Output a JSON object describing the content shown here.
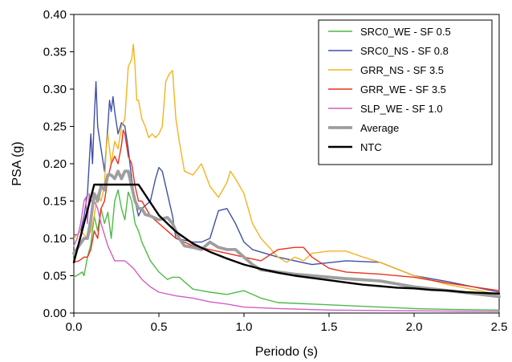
{
  "chart_data": {
    "type": "line",
    "xlabel": "Periodo (s)",
    "ylabel": "PSA (g)",
    "xlim": [
      0,
      2.5
    ],
    "ylim": [
      0,
      0.4
    ],
    "xticks": [
      "0.0",
      "0.5",
      "1.0",
      "1.5",
      "2.0",
      "2.5"
    ],
    "yticks": [
      "0.00",
      "0.05",
      "0.10",
      "0.15",
      "0.20",
      "0.25",
      "0.30",
      "0.35",
      "0.40"
    ],
    "grid": false,
    "legend_position": "top-right",
    "series": [
      {
        "name": "SRC0_WE - SF 0.5",
        "color": "#4cbb47",
        "width": 1.4,
        "points": [
          [
            0.0,
            0.048
          ],
          [
            0.03,
            0.052
          ],
          [
            0.05,
            0.055
          ],
          [
            0.06,
            0.05
          ],
          [
            0.08,
            0.075
          ],
          [
            0.1,
            0.092
          ],
          [
            0.12,
            0.13
          ],
          [
            0.14,
            0.11
          ],
          [
            0.16,
            0.14
          ],
          [
            0.18,
            0.12
          ],
          [
            0.2,
            0.135
          ],
          [
            0.22,
            0.1
          ],
          [
            0.24,
            0.15
          ],
          [
            0.26,
            0.165
          ],
          [
            0.28,
            0.14
          ],
          [
            0.3,
            0.125
          ],
          [
            0.32,
            0.162
          ],
          [
            0.34,
            0.15
          ],
          [
            0.36,
            0.12
          ],
          [
            0.38,
            0.11
          ],
          [
            0.4,
            0.095
          ],
          [
            0.45,
            0.07
          ],
          [
            0.5,
            0.055
          ],
          [
            0.55,
            0.045
          ],
          [
            0.58,
            0.048
          ],
          [
            0.62,
            0.048
          ],
          [
            0.66,
            0.04
          ],
          [
            0.7,
            0.032
          ],
          [
            0.8,
            0.028
          ],
          [
            0.9,
            0.025
          ],
          [
            1.0,
            0.03
          ],
          [
            1.1,
            0.02
          ],
          [
            1.2,
            0.014
          ],
          [
            1.4,
            0.012
          ],
          [
            1.6,
            0.01
          ],
          [
            1.8,
            0.008
          ],
          [
            2.0,
            0.006
          ],
          [
            2.2,
            0.005
          ],
          [
            2.5,
            0.004
          ]
        ]
      },
      {
        "name": "SRC0_NS - SF 0.8",
        "color": "#3f4fa8",
        "width": 1.4,
        "points": [
          [
            0.0,
            0.105
          ],
          [
            0.02,
            0.105
          ],
          [
            0.04,
            0.11
          ],
          [
            0.06,
            0.13
          ],
          [
            0.08,
            0.16
          ],
          [
            0.1,
            0.24
          ],
          [
            0.11,
            0.2
          ],
          [
            0.12,
            0.26
          ],
          [
            0.13,
            0.31
          ],
          [
            0.14,
            0.25
          ],
          [
            0.16,
            0.22
          ],
          [
            0.18,
            0.19
          ],
          [
            0.2,
            0.25
          ],
          [
            0.21,
            0.285
          ],
          [
            0.22,
            0.27
          ],
          [
            0.23,
            0.29
          ],
          [
            0.24,
            0.27
          ],
          [
            0.26,
            0.24
          ],
          [
            0.28,
            0.255
          ],
          [
            0.3,
            0.25
          ],
          [
            0.32,
            0.22
          ],
          [
            0.34,
            0.18
          ],
          [
            0.36,
            0.15
          ],
          [
            0.38,
            0.13
          ],
          [
            0.4,
            0.14
          ],
          [
            0.45,
            0.15
          ],
          [
            0.48,
            0.18
          ],
          [
            0.5,
            0.195
          ],
          [
            0.52,
            0.19
          ],
          [
            0.55,
            0.16
          ],
          [
            0.58,
            0.13
          ],
          [
            0.6,
            0.1
          ],
          [
            0.7,
            0.095
          ],
          [
            0.75,
            0.095
          ],
          [
            0.8,
            0.1
          ],
          [
            0.85,
            0.137
          ],
          [
            0.9,
            0.14
          ],
          [
            0.95,
            0.12
          ],
          [
            1.0,
            0.095
          ],
          [
            1.05,
            0.085
          ],
          [
            1.2,
            0.075
          ],
          [
            1.4,
            0.065
          ],
          [
            1.6,
            0.07
          ],
          [
            1.8,
            0.068
          ],
          [
            2.0,
            0.05
          ],
          [
            2.2,
            0.042
          ],
          [
            2.5,
            0.028
          ]
        ]
      },
      {
        "name": "GRR_NS - SF 3.5",
        "color": "#f5b320",
        "width": 1.4,
        "points": [
          [
            0.0,
            0.1
          ],
          [
            0.04,
            0.11
          ],
          [
            0.08,
            0.1
          ],
          [
            0.1,
            0.11
          ],
          [
            0.12,
            0.13
          ],
          [
            0.14,
            0.16
          ],
          [
            0.16,
            0.15
          ],
          [
            0.18,
            0.17
          ],
          [
            0.19,
            0.22
          ],
          [
            0.2,
            0.24
          ],
          [
            0.22,
            0.2
          ],
          [
            0.24,
            0.23
          ],
          [
            0.26,
            0.22
          ],
          [
            0.28,
            0.25
          ],
          [
            0.3,
            0.26
          ],
          [
            0.32,
            0.33
          ],
          [
            0.34,
            0.34
          ],
          [
            0.35,
            0.36
          ],
          [
            0.36,
            0.33
          ],
          [
            0.37,
            0.285
          ],
          [
            0.38,
            0.285
          ],
          [
            0.4,
            0.26
          ],
          [
            0.42,
            0.25
          ],
          [
            0.44,
            0.235
          ],
          [
            0.46,
            0.24
          ],
          [
            0.48,
            0.235
          ],
          [
            0.5,
            0.24
          ],
          [
            0.52,
            0.25
          ],
          [
            0.54,
            0.31
          ],
          [
            0.56,
            0.32
          ],
          [
            0.58,
            0.325
          ],
          [
            0.6,
            0.26
          ],
          [
            0.62,
            0.23
          ],
          [
            0.65,
            0.19
          ],
          [
            0.7,
            0.185
          ],
          [
            0.75,
            0.2
          ],
          [
            0.8,
            0.17
          ],
          [
            0.85,
            0.155
          ],
          [
            0.9,
            0.175
          ],
          [
            0.92,
            0.19
          ],
          [
            0.95,
            0.18
          ],
          [
            1.0,
            0.16
          ],
          [
            1.05,
            0.12
          ],
          [
            1.1,
            0.1
          ],
          [
            1.2,
            0.075
          ],
          [
            1.25,
            0.068
          ],
          [
            1.3,
            0.075
          ],
          [
            1.35,
            0.07
          ],
          [
            1.4,
            0.08
          ],
          [
            1.5,
            0.083
          ],
          [
            1.6,
            0.083
          ],
          [
            1.7,
            0.075
          ],
          [
            1.8,
            0.068
          ],
          [
            2.0,
            0.05
          ],
          [
            2.2,
            0.038
          ],
          [
            2.5,
            0.025
          ]
        ]
      },
      {
        "name": "GRR_WE - SF 3.5",
        "color": "#e8321e",
        "width": 1.4,
        "points": [
          [
            0.0,
            0.068
          ],
          [
            0.03,
            0.07
          ],
          [
            0.06,
            0.075
          ],
          [
            0.08,
            0.075
          ],
          [
            0.1,
            0.085
          ],
          [
            0.12,
            0.11
          ],
          [
            0.14,
            0.1
          ],
          [
            0.16,
            0.14
          ],
          [
            0.18,
            0.15
          ],
          [
            0.2,
            0.18
          ],
          [
            0.22,
            0.2
          ],
          [
            0.24,
            0.21
          ],
          [
            0.26,
            0.2
          ],
          [
            0.28,
            0.225
          ],
          [
            0.29,
            0.245
          ],
          [
            0.3,
            0.24
          ],
          [
            0.32,
            0.21
          ],
          [
            0.34,
            0.2
          ],
          [
            0.36,
            0.17
          ],
          [
            0.38,
            0.15
          ],
          [
            0.4,
            0.15
          ],
          [
            0.45,
            0.13
          ],
          [
            0.5,
            0.12
          ],
          [
            0.55,
            0.11
          ],
          [
            0.6,
            0.1
          ],
          [
            0.7,
            0.09
          ],
          [
            0.8,
            0.085
          ],
          [
            0.9,
            0.08
          ],
          [
            1.0,
            0.075
          ],
          [
            1.1,
            0.07
          ],
          [
            1.2,
            0.085
          ],
          [
            1.3,
            0.088
          ],
          [
            1.35,
            0.088
          ],
          [
            1.4,
            0.075
          ],
          [
            1.5,
            0.06
          ],
          [
            1.6,
            0.055
          ],
          [
            1.8,
            0.052
          ],
          [
            2.0,
            0.048
          ],
          [
            2.2,
            0.04
          ],
          [
            2.5,
            0.03
          ]
        ]
      },
      {
        "name": "SLP_WE - SF 1.0",
        "color": "#d15ec7",
        "width": 1.4,
        "points": [
          [
            0.0,
            0.09
          ],
          [
            0.02,
            0.1
          ],
          [
            0.04,
            0.12
          ],
          [
            0.06,
            0.15
          ],
          [
            0.07,
            0.155
          ],
          [
            0.08,
            0.12
          ],
          [
            0.09,
            0.16
          ],
          [
            0.1,
            0.15
          ],
          [
            0.12,
            0.15
          ],
          [
            0.14,
            0.14
          ],
          [
            0.16,
            0.12
          ],
          [
            0.18,
            0.105
          ],
          [
            0.2,
            0.09
          ],
          [
            0.22,
            0.08
          ],
          [
            0.24,
            0.07
          ],
          [
            0.28,
            0.07
          ],
          [
            0.3,
            0.07
          ],
          [
            0.35,
            0.06
          ],
          [
            0.4,
            0.045
          ],
          [
            0.45,
            0.035
          ],
          [
            0.5,
            0.028
          ],
          [
            0.6,
            0.023
          ],
          [
            0.7,
            0.02
          ],
          [
            0.8,
            0.015
          ],
          [
            0.9,
            0.012
          ],
          [
            1.0,
            0.008
          ],
          [
            1.2,
            0.006
          ],
          [
            1.5,
            0.004
          ],
          [
            2.0,
            0.003
          ],
          [
            2.5,
            0.002
          ]
        ]
      },
      {
        "name": "Average",
        "color": "#9e9e9e",
        "width": 3.8,
        "points": [
          [
            0.0,
            0.08
          ],
          [
            0.03,
            0.09
          ],
          [
            0.06,
            0.1
          ],
          [
            0.08,
            0.1
          ],
          [
            0.1,
            0.125
          ],
          [
            0.12,
            0.16
          ],
          [
            0.14,
            0.15
          ],
          [
            0.16,
            0.17
          ],
          [
            0.18,
            0.165
          ],
          [
            0.2,
            0.185
          ],
          [
            0.22,
            0.185
          ],
          [
            0.24,
            0.18
          ],
          [
            0.26,
            0.19
          ],
          [
            0.28,
            0.18
          ],
          [
            0.3,
            0.19
          ],
          [
            0.32,
            0.19
          ],
          [
            0.34,
            0.17
          ],
          [
            0.36,
            0.15
          ],
          [
            0.38,
            0.14
          ],
          [
            0.4,
            0.14
          ],
          [
            0.42,
            0.132
          ],
          [
            0.45,
            0.13
          ],
          [
            0.5,
            0.125
          ],
          [
            0.55,
            0.128
          ],
          [
            0.58,
            0.12
          ],
          [
            0.62,
            0.1
          ],
          [
            0.65,
            0.09
          ],
          [
            0.7,
            0.088
          ],
          [
            0.75,
            0.085
          ],
          [
            0.8,
            0.095
          ],
          [
            0.85,
            0.088
          ],
          [
            0.9,
            0.085
          ],
          [
            0.95,
            0.085
          ],
          [
            1.0,
            0.075
          ],
          [
            1.05,
            0.065
          ],
          [
            1.1,
            0.058
          ],
          [
            1.2,
            0.055
          ],
          [
            1.3,
            0.052
          ],
          [
            1.4,
            0.05
          ],
          [
            1.6,
            0.046
          ],
          [
            1.8,
            0.043
          ],
          [
            2.0,
            0.035
          ],
          [
            2.2,
            0.03
          ],
          [
            2.5,
            0.022
          ]
        ]
      },
      {
        "name": "NTC",
        "color": "#000000",
        "width": 2.4,
        "points": [
          [
            0.0,
            0.068
          ],
          [
            0.12,
            0.172
          ],
          [
            0.2,
            0.172
          ],
          [
            0.3,
            0.172
          ],
          [
            0.38,
            0.172
          ],
          [
            0.5,
            0.131
          ],
          [
            0.6,
            0.109
          ],
          [
            0.7,
            0.093
          ],
          [
            0.8,
            0.082
          ],
          [
            0.9,
            0.073
          ],
          [
            1.0,
            0.065
          ],
          [
            1.1,
            0.059
          ],
          [
            1.2,
            0.054
          ],
          [
            1.3,
            0.05
          ],
          [
            1.4,
            0.047
          ],
          [
            1.5,
            0.044
          ],
          [
            1.6,
            0.041
          ],
          [
            1.7,
            0.038
          ],
          [
            1.8,
            0.036
          ],
          [
            1.9,
            0.034
          ],
          [
            2.0,
            0.033
          ],
          [
            2.1,
            0.031
          ],
          [
            2.2,
            0.03
          ],
          [
            2.3,
            0.028
          ],
          [
            2.4,
            0.027
          ],
          [
            2.5,
            0.026
          ]
        ]
      }
    ]
  }
}
